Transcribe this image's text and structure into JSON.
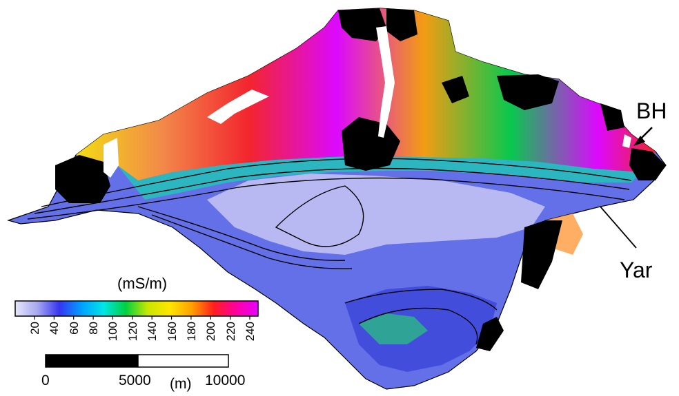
{
  "legend": {
    "unit": "(mS/m)",
    "ticks": [
      "20",
      "40",
      "60",
      "80",
      "100",
      "120",
      "140",
      "160",
      "180",
      "200",
      "220",
      "240"
    ],
    "gradient": [
      "#e6e6fa",
      "#a8a8f0",
      "#3535f0",
      "#00a0ff",
      "#00e6e6",
      "#00d040",
      "#c8e600",
      "#ffe600",
      "#ffa000",
      "#ff1e1e",
      "#ff00a0",
      "#e600ff"
    ]
  },
  "scalebar": {
    "labels": [
      "0",
      "5000",
      "10000"
    ],
    "unit": "(m)"
  },
  "annotations": {
    "bh": "BH",
    "yar": "Yar"
  },
  "colors": {
    "island_low": "#7080f0",
    "island_high": "#ff8a3c",
    "mask": "#000000"
  }
}
